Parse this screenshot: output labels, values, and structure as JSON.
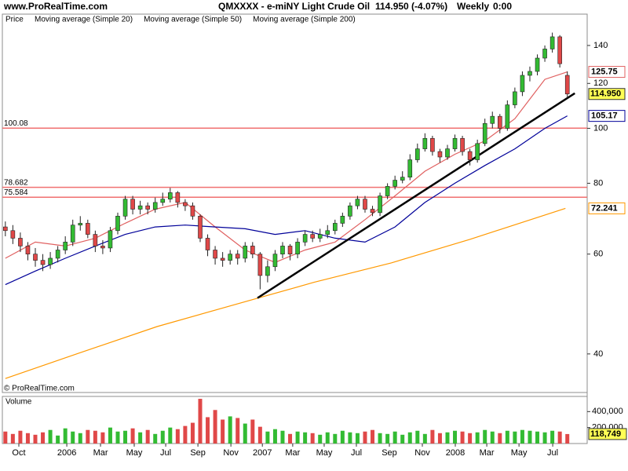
{
  "chart_data": [
    {
      "type": "candlestick",
      "site": "www.ProRealTime.com",
      "title": "QMXXXX - e-miNY Light Crude Oil",
      "quote": "114.950 (-4.07%)",
      "period": "Weekly",
      "time": "0:00",
      "copyright": "© ProRealTime.com",
      "name": "Price",
      "up_color": "#33bb33",
      "down_color": "#e04848",
      "x": [
        0,
        2,
        4,
        6,
        8,
        10,
        12,
        14,
        16,
        18,
        20,
        22,
        24,
        26,
        28,
        30,
        32,
        34,
        36,
        38,
        40,
        42,
        44,
        46,
        48,
        50,
        52,
        54,
        56,
        58,
        60,
        62,
        64,
        66,
        68,
        70,
        72,
        74,
        76,
        78,
        80,
        82,
        84,
        86,
        88,
        90,
        92,
        94,
        96,
        98,
        100,
        102,
        104,
        106,
        108,
        110,
        112,
        114,
        116,
        118,
        120,
        122,
        124,
        126,
        128,
        130,
        132,
        134,
        136,
        138,
        140,
        142,
        144,
        146,
        148,
        150
      ],
      "open": [
        67,
        66,
        64,
        62,
        60,
        58.5,
        57.5,
        59,
        61,
        63,
        67.5,
        68,
        65,
        62,
        61.5,
        66,
        70,
        75,
        72,
        73,
        72,
        74,
        75,
        77,
        74,
        73,
        70,
        64,
        61,
        59,
        58.5,
        60,
        59,
        62,
        60,
        55,
        57,
        60,
        62,
        60,
        63,
        65,
        64,
        65,
        66,
        68,
        70,
        73,
        75,
        72,
        71,
        76,
        79,
        81,
        82,
        88,
        92,
        96,
        91,
        89,
        92,
        96,
        91,
        88,
        94,
        102,
        105,
        100,
        110,
        116,
        124,
        126,
        133,
        138,
        145,
        124
      ],
      "high": [
        68.5,
        67.5,
        65.5,
        63,
        61.5,
        60,
        60.5,
        62,
        64.5,
        69,
        70,
        69,
        66,
        63.5,
        67,
        71,
        76,
        76,
        74.5,
        74,
        75.5,
        77,
        78.5,
        77.5,
        75,
        74,
        70.5,
        65,
        62,
        60.5,
        61,
        61,
        63,
        63,
        60.5,
        58.5,
        61,
        63,
        62.5,
        64,
        66,
        66,
        66.5,
        67.5,
        69,
        71,
        74,
        76,
        76,
        73,
        77,
        80,
        82.5,
        84,
        90,
        94,
        98,
        97,
        92,
        93.5,
        97.5,
        97,
        92,
        95.5,
        104,
        107,
        106,
        112,
        118,
        126,
        128.5,
        135,
        140,
        147.5,
        146,
        126
      ],
      "low": [
        64.5,
        62.5,
        60.5,
        58.5,
        57,
        56,
        56.5,
        58,
        60,
        62,
        66,
        64,
        60.5,
        60,
        60.5,
        65,
        69,
        70.5,
        70.5,
        70.5,
        71,
        73,
        74,
        72.5,
        71.5,
        69,
        63,
        59.5,
        57.5,
        57,
        57.5,
        57.5,
        58,
        59,
        52,
        53.5,
        56,
        59,
        58.5,
        59,
        62,
        63,
        63,
        64,
        65,
        67,
        69,
        72,
        71,
        70,
        70,
        75,
        78,
        80,
        81,
        87,
        91,
        89.5,
        87,
        88,
        91,
        89.5,
        86,
        87,
        93,
        100,
        98,
        99,
        108.5,
        114,
        121,
        124,
        131,
        136,
        128,
        113
      ],
      "close": [
        66,
        64,
        62,
        60,
        58.5,
        57.5,
        59,
        61,
        63,
        67.5,
        68,
        65,
        62,
        61.5,
        66,
        70,
        75,
        72,
        73,
        72,
        74,
        75,
        77,
        74,
        73,
        70,
        64,
        61,
        59,
        58.5,
        60,
        59,
        62,
        60,
        55,
        57,
        60,
        62,
        60,
        63,
        65,
        64,
        65,
        66,
        68,
        70,
        73,
        75,
        72,
        71,
        76,
        79,
        81,
        82,
        88,
        92,
        96,
        91,
        89,
        92,
        96,
        91,
        88,
        94,
        102,
        105,
        100,
        110,
        116,
        124,
        126,
        133,
        138,
        145,
        130,
        114.95
      ],
      "close_labels": [
        null,
        null,
        null,
        null,
        null,
        null,
        null,
        null,
        null,
        null,
        null,
        null,
        null,
        null,
        null,
        null,
        null,
        null,
        null,
        null,
        null,
        null,
        null,
        null,
        null,
        null,
        null,
        null,
        null,
        null,
        null,
        null,
        null,
        null,
        null,
        null,
        null,
        null,
        null,
        null,
        null,
        null,
        null,
        null,
        null,
        null,
        null,
        null,
        null,
        null,
        null,
        null,
        null,
        null,
        null,
        null,
        null,
        null,
        null,
        null,
        null,
        null,
        null,
        null,
        null,
        null,
        null,
        null,
        null,
        null,
        null,
        null,
        null,
        null,
        null,
        "114.950"
      ],
      "series": [
        {
          "name": "Moving average (Simple 20)",
          "color": "#e06060",
          "x": [
            0,
            8,
            16,
            24,
            32,
            40,
            48,
            56,
            64,
            72,
            80,
            88,
            96,
            104,
            112,
            120,
            128,
            136,
            144,
            150
          ],
          "values": [
            59,
            63,
            62,
            64,
            68,
            72,
            74,
            67,
            61,
            58,
            61,
            63,
            69,
            76,
            84,
            90,
            95,
            104,
            122,
            125.75
          ]
        },
        {
          "name": "Moving average (Simple 50)",
          "color": "#000099",
          "x": [
            0,
            8,
            16,
            24,
            32,
            40,
            48,
            56,
            64,
            72,
            80,
            88,
            96,
            104,
            112,
            120,
            128,
            136,
            144,
            150
          ],
          "values": [
            53,
            56,
            59,
            62,
            65,
            67,
            67.5,
            67,
            66.5,
            65,
            66,
            64,
            63,
            67,
            74,
            80,
            86,
            92,
            100,
            105.17
          ]
        },
        {
          "name": "Moving average (Simple 200)",
          "color": "#ff9900",
          "x": [
            0,
            19.5,
            40.5,
            61.4,
            82.4,
            103,
            124,
            149.5
          ],
          "values": [
            36.2,
            40.1,
            44.7,
            48.9,
            53.5,
            57.9,
            63.7,
            72.241
          ]
        }
      ],
      "hlines": [
        100.08,
        78.682,
        75.584
      ],
      "hline_color": "#f07070",
      "trendline": {
        "color": "#000000",
        "x": [
          67.3,
          152
        ],
        "values": [
          50.2,
          115.3
        ]
      },
      "log_scale": true,
      "ylim": [
        34.2,
        159
      ],
      "yticks": [
        40,
        60,
        80,
        100,
        120,
        140
      ],
      "xlim": [
        -0.8,
        155.3
      ]
    },
    {
      "type": "bar",
      "title": "Volume",
      "x": [
        0,
        2,
        4,
        6,
        8,
        10,
        12,
        14,
        16,
        18,
        20,
        22,
        24,
        26,
        28,
        30,
        32,
        34,
        36,
        38,
        40,
        42,
        44,
        46,
        48,
        50,
        52,
        54,
        56,
        58,
        60,
        62,
        64,
        66,
        68,
        70,
        72,
        74,
        76,
        78,
        80,
        82,
        84,
        86,
        88,
        90,
        92,
        94,
        96,
        98,
        100,
        102,
        104,
        106,
        108,
        110,
        112,
        114,
        116,
        118,
        120,
        122,
        124,
        126,
        128,
        130,
        132,
        134,
        136,
        138,
        140,
        142,
        144,
        146,
        148,
        150
      ],
      "values": [
        150000,
        120000,
        160000,
        130000,
        110000,
        140000,
        170000,
        100000,
        190000,
        150000,
        130000,
        170000,
        160000,
        140000,
        200000,
        150000,
        160000,
        190000,
        140000,
        170000,
        120000,
        160000,
        200000,
        180000,
        220000,
        260000,
        560000,
        330000,
        420000,
        300000,
        340000,
        320000,
        250000,
        300000,
        210000,
        150000,
        180000,
        160000,
        120000,
        150000,
        140000,
        130000,
        110000,
        140000,
        120000,
        160000,
        140000,
        130000,
        150000,
        170000,
        130000,
        120000,
        150000,
        110000,
        140000,
        160000,
        120000,
        170000,
        130000,
        140000,
        160000,
        150000,
        130000,
        140000,
        170000,
        150000,
        130000,
        160000,
        150000,
        170000,
        160000,
        150000,
        140000,
        160000,
        150000,
        118749
      ],
      "value_labels": [
        null,
        null,
        null,
        null,
        null,
        null,
        null,
        null,
        null,
        null,
        null,
        null,
        null,
        null,
        null,
        null,
        null,
        null,
        null,
        null,
        null,
        null,
        null,
        null,
        null,
        null,
        null,
        null,
        null,
        null,
        null,
        null,
        null,
        null,
        null,
        null,
        null,
        null,
        null,
        null,
        null,
        null,
        null,
        null,
        null,
        null,
        null,
        null,
        null,
        null,
        null,
        null,
        null,
        null,
        null,
        null,
        null,
        null,
        null,
        null,
        null,
        null,
        null,
        null,
        null,
        null,
        null,
        null,
        null,
        null,
        null,
        null,
        null,
        null,
        null,
        "118,749"
      ],
      "ylim": [
        0,
        590000
      ],
      "yticks": [
        {
          "value": 200000,
          "label": "200,000"
        },
        {
          "value": 400000,
          "label": "400,000"
        }
      ],
      "xlim": [
        -0.8,
        155.3
      ],
      "xticks": [
        {
          "value": 3.6,
          "label": "Oct"
        },
        {
          "value": 16.4,
          "label": "2006"
        },
        {
          "value": 25.4,
          "label": "Mar"
        },
        {
          "value": 34.4,
          "label": "May"
        },
        {
          "value": 42.8,
          "label": "Jul"
        },
        {
          "value": 51.4,
          "label": "Sep"
        },
        {
          "value": 60.2,
          "label": "Nov"
        },
        {
          "value": 68.6,
          "label": "2007"
        },
        {
          "value": 76.7,
          "label": "Mar"
        },
        {
          "value": 85.1,
          "label": "May"
        },
        {
          "value": 93.7,
          "label": "Jul"
        },
        {
          "value": 102.5,
          "label": "Sep"
        },
        {
          "value": 111.3,
          "label": "Nov"
        },
        {
          "value": 120.1,
          "label": "2008"
        },
        {
          "value": 128.5,
          "label": "Mar"
        },
        {
          "value": 137.1,
          "label": "May"
        },
        {
          "value": 146.1,
          "label": "Jul"
        }
      ]
    }
  ]
}
